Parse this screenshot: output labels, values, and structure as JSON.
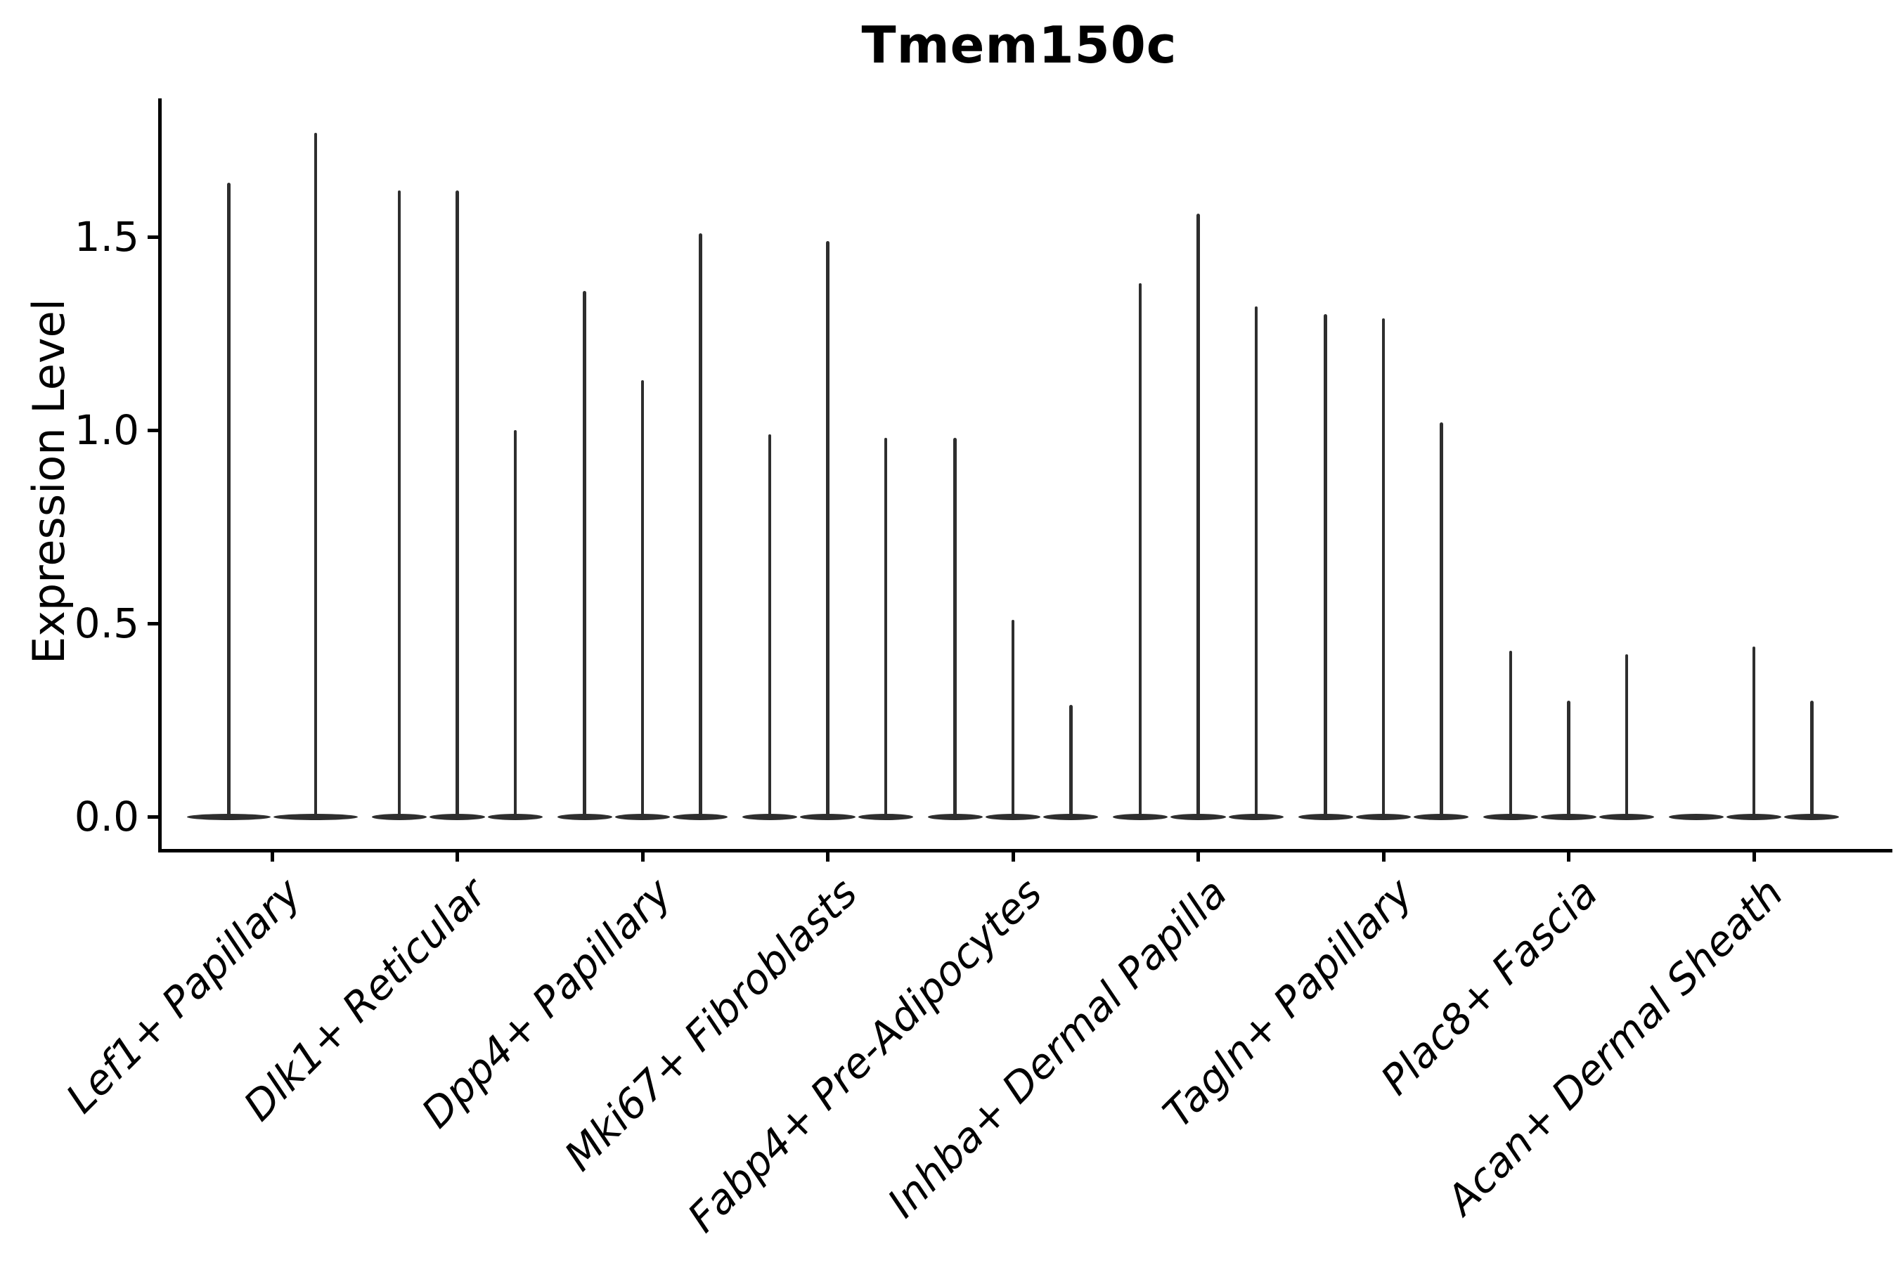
{
  "title": "Tmem150c",
  "y_axis_label": "Expression Level",
  "chart_data": {
    "type": "violin",
    "title": "Tmem150c",
    "xlabel": "",
    "ylabel": "Expression Level",
    "ylim": [
      -0.09,
      1.86
    ],
    "yticks": [
      0.0,
      0.5,
      1.0,
      1.5
    ],
    "ytick_labels": [
      "0.0",
      "0.5",
      "1.0",
      "1.5"
    ],
    "grid": false,
    "legend_position": "none",
    "categories": [
      "Lef1+ Papillary",
      "Dlk1+ Reticular",
      "Dpp4+ Papillary",
      "Mki67+ Fibroblasts",
      "Fabp4+ Pre-Adipocytes",
      "Inhba+ Dermal Papilla",
      "Tagln+ Papillary",
      "Plac8+ Fascia",
      "Acan+ Dermal Sheath"
    ],
    "violins": [
      {
        "category": "Lef1+ Papillary",
        "peaks": [
          1.64,
          1.77
        ]
      },
      {
        "category": "Dlk1+ Reticular",
        "peaks": [
          1.62,
          1.62,
          1.0
        ]
      },
      {
        "category": "Dpp4+ Papillary",
        "peaks": [
          1.36,
          1.13,
          1.51
        ]
      },
      {
        "category": "Mki67+ Fibroblasts",
        "peaks": [
          0.99,
          1.49,
          0.98
        ]
      },
      {
        "category": "Fabp4+ Pre-Adipocytes",
        "peaks": [
          0.98,
          0.51,
          0.29
        ]
      },
      {
        "category": "Inhba+ Dermal Papilla",
        "peaks": [
          1.38,
          1.56,
          1.32
        ]
      },
      {
        "category": "Tagln+ Papillary",
        "peaks": [
          1.3,
          1.29,
          1.02
        ]
      },
      {
        "category": "Plac8+ Fascia",
        "peaks": [
          0.43,
          0.3,
          0.42
        ]
      },
      {
        "category": "Acan+ Dermal Sheath",
        "peaks": [
          0.0,
          0.44,
          0.3
        ]
      }
    ],
    "peaks_note": "Each category holds 2-3 thin violins; peak = expression level at top of each spike, 0 = flat violin collapsed on baseline",
    "colors": {
      "violin": "#2e2e2e",
      "spine": "#000000",
      "text": "#000000",
      "background": "#ffffff"
    }
  }
}
